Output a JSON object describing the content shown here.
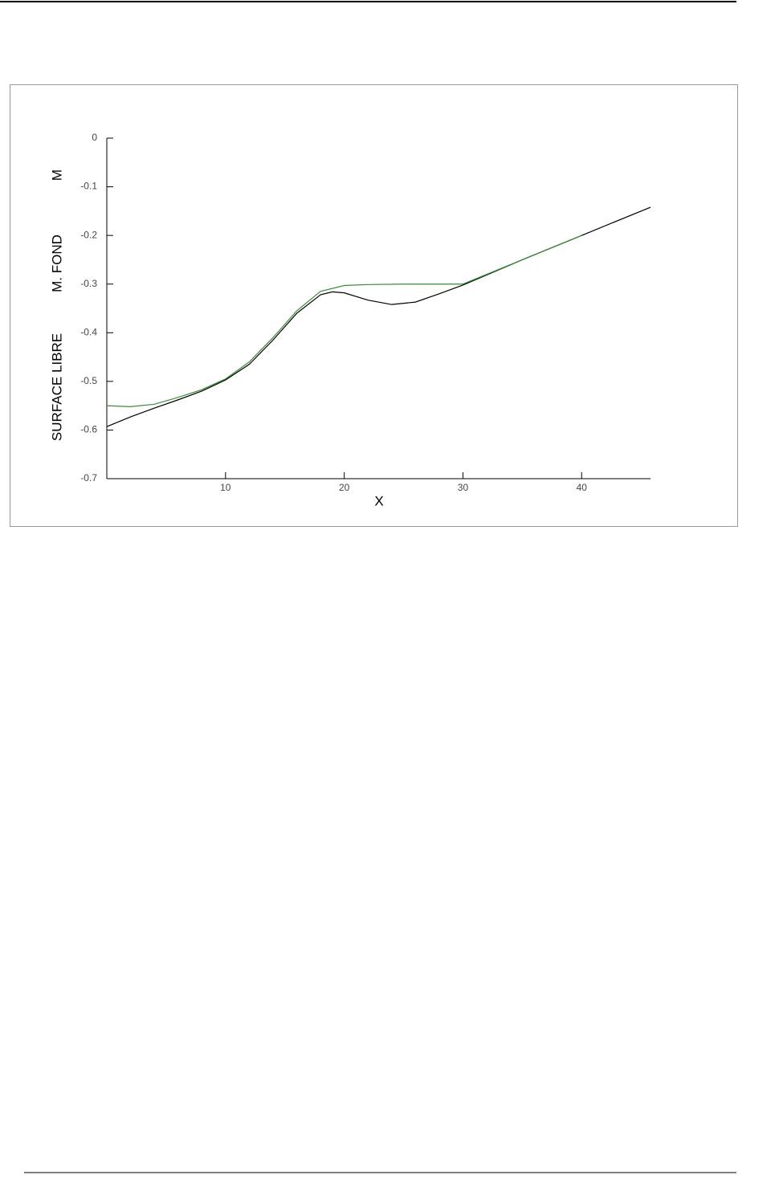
{
  "chart_data": {
    "type": "line",
    "x_label": "X",
    "y_label": [
      "SURFACE LIBRE",
      "M. FOND",
      "M"
    ],
    "xlim": [
      0,
      45.8
    ],
    "xticks": [
      10,
      20,
      30,
      40
    ],
    "ylim": [
      -0.7,
      0
    ],
    "yticks": [
      0,
      -0.1,
      -0.2,
      -0.3,
      -0.4,
      -0.5,
      -0.6,
      -0.7
    ],
    "grid": false,
    "series": [
      {
        "color": "#000000",
        "x": [
          0,
          2,
          4,
          6,
          8,
          10,
          12,
          14,
          16,
          18,
          19,
          20,
          22,
          24,
          26,
          28,
          30,
          35,
          40,
          45.8
        ],
        "values": [
          -0.593,
          -0.573,
          -0.555,
          -0.538,
          -0.52,
          -0.497,
          -0.465,
          -0.415,
          -0.36,
          -0.322,
          -0.316,
          -0.318,
          -0.333,
          -0.342,
          -0.337,
          -0.32,
          -0.302,
          -0.25,
          -0.2,
          -0.142
        ]
      },
      {
        "color": "#3a8a3a",
        "x": [
          0,
          2,
          4,
          6,
          8,
          10,
          12,
          14,
          16,
          18,
          20,
          22,
          25,
          30,
          35,
          40
        ],
        "values": [
          -0.55,
          -0.552,
          -0.547,
          -0.533,
          -0.517,
          -0.495,
          -0.46,
          -0.41,
          -0.355,
          -0.315,
          -0.303,
          -0.301,
          -0.3,
          -0.3,
          -0.25,
          -0.2
        ]
      }
    ]
  }
}
